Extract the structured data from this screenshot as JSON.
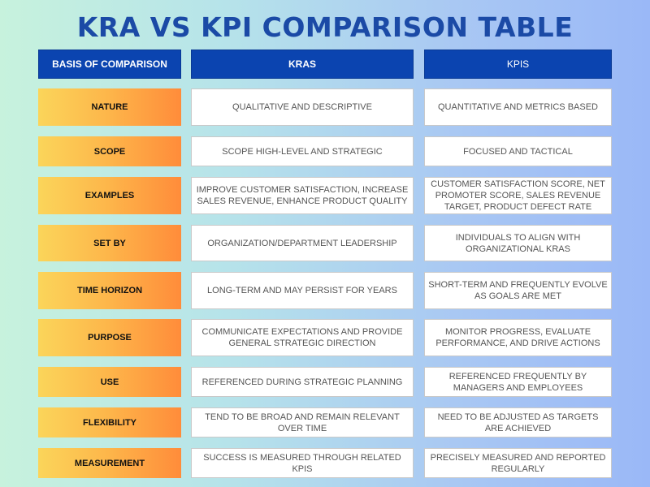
{
  "title": "KRA VS KPI COMPARISON TABLE",
  "headers": [
    "BASIS OF COMPARISON",
    "KRAS",
    "KPIS"
  ],
  "rows": [
    {
      "label": "NATURE",
      "kra": "QUALITATIVE AND DESCRIPTIVE",
      "kpi": "QUANTITATIVE AND METRICS BASED"
    },
    {
      "label": "SCOPE",
      "kra": "SCOPE HIGH-LEVEL AND STRATEGIC",
      "kpi": "FOCUSED AND TACTICAL"
    },
    {
      "label": "EXAMPLES",
      "kra": "IMPROVE CUSTOMER SATISFACTION, INCREASE SALES REVENUE, ENHANCE PRODUCT QUALITY",
      "kpi": "CUSTOMER SATISFACTION SCORE, NET PROMOTER SCORE, SALES REVENUE TARGET, PRODUCT DEFECT RATE"
    },
    {
      "label": "SET BY",
      "kra": "ORGANIZATION/DEPARTMENT LEADERSHIP",
      "kpi": "INDIVIDUALS TO ALIGN WITH ORGANIZATIONAL KRAS"
    },
    {
      "label": "TIME HORIZON",
      "kra": "LONG-TERM AND MAY PERSIST FOR YEARS",
      "kpi": "SHORT-TERM AND FREQUENTLY EVOLVE AS GOALS ARE MET"
    },
    {
      "label": "PURPOSE",
      "kra": "COMMUNICATE EXPECTATIONS AND PROVIDE GENERAL STRATEGIC DIRECTION",
      "kpi": "MONITOR PROGRESS, EVALUATE PERFORMANCE, AND DRIVE ACTIONS"
    },
    {
      "label": "USE",
      "kra": "REFERENCED DURING STRATEGIC PLANNING",
      "kpi": "REFERENCED FREQUENTLY BY MANAGERS AND EMPLOYEES"
    },
    {
      "label": "FLEXIBILITY",
      "kra": "TEND TO BE BROAD AND REMAIN RELEVANT OVER TIME",
      "kpi": "NEED TO BE ADJUSTED AS TARGETS ARE ACHIEVED"
    },
    {
      "label": "MEASUREMENT",
      "kra": "SUCCESS IS MEASURED THROUGH RELATED KPIS",
      "kpi": "PRECISELY MEASURED AND REPORTED REGULARLY"
    }
  ]
}
